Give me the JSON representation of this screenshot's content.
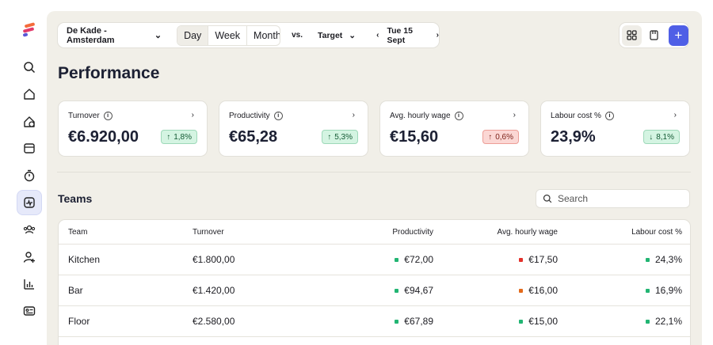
{
  "colors": {
    "accent": "#4f5fe6",
    "good": "#22b573",
    "bad": "#e3312b",
    "warn": "#e36a1b",
    "background": "#f1efe8"
  },
  "sidebar": {
    "items": [
      {
        "icon": "search-icon",
        "active": false
      },
      {
        "icon": "home-icon",
        "active": false
      },
      {
        "icon": "location-icon",
        "active": false
      },
      {
        "icon": "calendar-icon",
        "active": false
      },
      {
        "icon": "timer-icon",
        "active": false
      },
      {
        "icon": "performance-icon",
        "active": true
      },
      {
        "icon": "users-icon",
        "active": false
      },
      {
        "icon": "add-user-icon",
        "active": false
      },
      {
        "icon": "bar-chart-icon",
        "active": false
      },
      {
        "icon": "id-card-icon",
        "active": false
      }
    ]
  },
  "toolbar": {
    "location": "De Kade - Amsterdam",
    "periods": [
      "Day",
      "Week",
      "Month"
    ],
    "selected_period": "Day",
    "vs_label": "vs.",
    "compare": "Target",
    "date": "Tue 15 Sept"
  },
  "page": {
    "title": "Performance"
  },
  "kpis": [
    {
      "label": "Turnover",
      "value": "€6.920,00",
      "change": "1,8%",
      "direction": "up",
      "tone": "good"
    },
    {
      "label": "Productivity",
      "value": "€65,28",
      "change": "5,3%",
      "direction": "up",
      "tone": "good"
    },
    {
      "label": "Avg. hourly wage",
      "value": "€15,60",
      "change": "0,6%",
      "direction": "up",
      "tone": "bad"
    },
    {
      "label": "Labour cost %",
      "value": "23,9%",
      "change": "8,1%",
      "direction": "down",
      "tone": "good"
    }
  ],
  "teams": {
    "title": "Teams",
    "search_placeholder": "Search",
    "columns": [
      "Team",
      "Turnover",
      "Productivity",
      "Avg. hourly wage",
      "Labour cost %"
    ],
    "rows": [
      {
        "team": "Kitchen",
        "turnover": "€1.800,00",
        "productivity": "€72,00",
        "productivity_status": "good",
        "wage": "€17,50",
        "wage_status": "bad",
        "labour": "24,3%",
        "labour_status": "good"
      },
      {
        "team": "Bar",
        "turnover": "€1.420,00",
        "productivity": "€94,67",
        "productivity_status": "good",
        "wage": "€16,00",
        "wage_status": "warn",
        "labour": "16,9%",
        "labour_status": "good"
      },
      {
        "team": "Floor",
        "turnover": "€2.580,00",
        "productivity": "€67,89",
        "productivity_status": "good",
        "wage": "€15,00",
        "wage_status": "good",
        "labour": "22,1%",
        "labour_status": "good"
      }
    ]
  }
}
